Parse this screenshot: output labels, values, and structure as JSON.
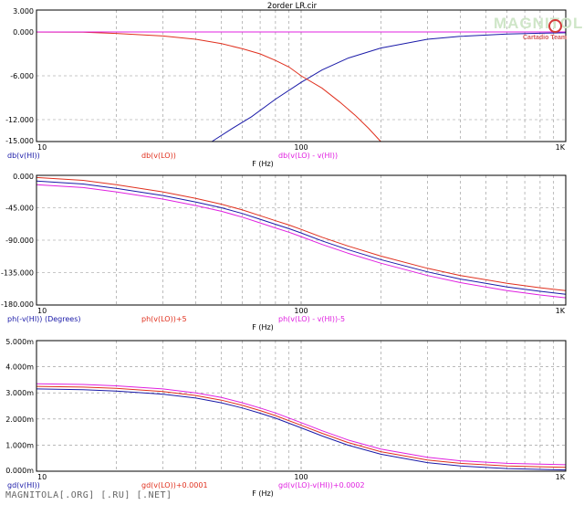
{
  "title": "2order LR.cir",
  "footer": "MAGNITOLA[.ORG] [.RU] [.NET]",
  "logo": {
    "main": "MAGNITOLA",
    "sub": "Cartadio Team"
  },
  "colors": {
    "blue": "#1a1aa8",
    "red": "#e0301e",
    "magenta": "#e020e0",
    "grid": "#909090"
  },
  "chart_data": [
    {
      "type": "line",
      "xscale": "log",
      "xlim": [
        10,
        1000
      ],
      "ylim": [
        -15,
        3
      ],
      "yticks": [
        "3.000",
        "0.000",
        "-6.000",
        "-12.000",
        "-15.000"
      ],
      "xticks": [
        "10",
        "100",
        "1K"
      ],
      "xlabel": "F (Hz)",
      "series": [
        {
          "name": "db(v(HI))",
          "color": "blue",
          "points": [
            [
              46,
              -15
            ],
            [
              55,
              -13.2
            ],
            [
              65,
              -11.6
            ],
            [
              80,
              -9.2
            ],
            [
              100,
              -6.9
            ],
            [
              120,
              -5.2
            ],
            [
              150,
              -3.6
            ],
            [
              200,
              -2.2
            ],
            [
              300,
              -1.0
            ],
            [
              400,
              -0.6
            ],
            [
              600,
              -0.28
            ],
            [
              800,
              -0.17
            ],
            [
              1000,
              -0.11
            ]
          ]
        },
        {
          "name": "db(v(LO))",
          "color": "red",
          "points": [
            [
              10,
              -0.01
            ],
            [
              15,
              -0.04
            ],
            [
              20,
              -0.2
            ],
            [
              30,
              -0.55
            ],
            [
              40,
              -1.0
            ],
            [
              50,
              -1.6
            ],
            [
              60,
              -2.3
            ],
            [
              70,
              -3.0
            ],
            [
              80,
              -3.9
            ],
            [
              90,
              -4.8
            ],
            [
              100,
              -6.0
            ],
            [
              120,
              -7.7
            ],
            [
              140,
              -9.6
            ],
            [
              160,
              -11.4
            ],
            [
              180,
              -13.2
            ],
            [
              200,
              -15
            ]
          ]
        },
        {
          "name": "db(v(LO) - v(HI))",
          "color": "magenta",
          "points": [
            [
              10,
              0
            ],
            [
              1000,
              0
            ]
          ]
        }
      ]
    },
    {
      "type": "line",
      "xscale": "log",
      "xlim": [
        10,
        1000
      ],
      "ylim": [
        -180,
        0
      ],
      "yticks": [
        "0.000",
        "-45.000",
        "-90.000",
        "-135.000",
        "-180.000"
      ],
      "xticks": [
        "10",
        "100",
        "1K"
      ],
      "xlabel": "F (Hz)",
      "series": [
        {
          "name": "ph(-v(HI)) (Degrees)",
          "color": "blue",
          "points": [
            [
              10,
              -8
            ],
            [
              15,
              -12
            ],
            [
              20,
              -18
            ],
            [
              30,
              -28
            ],
            [
              40,
              -37
            ],
            [
              50,
              -45
            ],
            [
              60,
              -53
            ],
            [
              70,
              -61
            ],
            [
              80,
              -68
            ],
            [
              90,
              -74
            ],
            [
              100,
              -80
            ],
            [
              120,
              -91
            ],
            [
              150,
              -103
            ],
            [
              200,
              -117
            ],
            [
              300,
              -134
            ],
            [
              400,
              -144
            ],
            [
              600,
              -155
            ],
            [
              800,
              -161
            ],
            [
              1000,
              -165
            ]
          ]
        },
        {
          "name": "ph(v(LO))+5",
          "color": "red",
          "points": [
            [
              10,
              -3
            ],
            [
              15,
              -7
            ],
            [
              20,
              -13
            ],
            [
              30,
              -23
            ],
            [
              40,
              -32
            ],
            [
              50,
              -40
            ],
            [
              60,
              -48
            ],
            [
              70,
              -56
            ],
            [
              80,
              -63
            ],
            [
              90,
              -69
            ],
            [
              100,
              -75
            ],
            [
              120,
              -86
            ],
            [
              150,
              -98
            ],
            [
              200,
              -112
            ],
            [
              300,
              -129
            ],
            [
              400,
              -139
            ],
            [
              600,
              -150
            ],
            [
              800,
              -156
            ],
            [
              1000,
              -160
            ]
          ]
        },
        {
          "name": "ph(v(LO) - v(HI))-5",
          "color": "magenta",
          "points": [
            [
              10,
              -13
            ],
            [
              15,
              -17
            ],
            [
              20,
              -23
            ],
            [
              30,
              -33
            ],
            [
              40,
              -42
            ],
            [
              50,
              -50
            ],
            [
              60,
              -58
            ],
            [
              70,
              -66
            ],
            [
              80,
              -73
            ],
            [
              90,
              -79
            ],
            [
              100,
              -85
            ],
            [
              120,
              -96
            ],
            [
              150,
              -108
            ],
            [
              200,
              -122
            ],
            [
              300,
              -139
            ],
            [
              400,
              -149
            ],
            [
              600,
              -160
            ],
            [
              800,
              -166
            ],
            [
              1000,
              -170
            ]
          ]
        }
      ]
    },
    {
      "type": "line",
      "xscale": "log",
      "xlim": [
        10,
        1000
      ],
      "ylim": [
        0,
        5
      ],
      "yticks": [
        "5.000m",
        "4.000m",
        "3.000m",
        "2.000m",
        "1.000m",
        "0.000m"
      ],
      "xticks": [
        "10",
        "100",
        "1K"
      ],
      "xlabel": "F (Hz)",
      "series": [
        {
          "name": "gd(v(HI))",
          "color": "blue",
          "points": [
            [
              10,
              3.15
            ],
            [
              15,
              3.12
            ],
            [
              20,
              3.07
            ],
            [
              30,
              2.95
            ],
            [
              40,
              2.8
            ],
            [
              50,
              2.62
            ],
            [
              60,
              2.42
            ],
            [
              70,
              2.22
            ],
            [
              80,
              2.03
            ],
            [
              100,
              1.66
            ],
            [
              120,
              1.35
            ],
            [
              150,
              1.0
            ],
            [
              200,
              0.65
            ],
            [
              300,
              0.33
            ],
            [
              400,
              0.2
            ],
            [
              600,
              0.1
            ],
            [
              800,
              0.07
            ],
            [
              1000,
              0.05
            ]
          ]
        },
        {
          "name": "gd(v(LO))+0.0001",
          "color": "red",
          "points": [
            [
              10,
              3.25
            ],
            [
              15,
              3.22
            ],
            [
              20,
              3.17
            ],
            [
              30,
              3.05
            ],
            [
              40,
              2.9
            ],
            [
              50,
              2.72
            ],
            [
              60,
              2.52
            ],
            [
              70,
              2.32
            ],
            [
              80,
              2.13
            ],
            [
              100,
              1.76
            ],
            [
              120,
              1.45
            ],
            [
              150,
              1.1
            ],
            [
              200,
              0.75
            ],
            [
              300,
              0.43
            ],
            [
              400,
              0.3
            ],
            [
              600,
              0.2
            ],
            [
              800,
              0.17
            ],
            [
              1000,
              0.15
            ]
          ]
        },
        {
          "name": "gd(v(LO)-v(HI))+0.0002",
          "color": "magenta",
          "points": [
            [
              10,
              3.35
            ],
            [
              15,
              3.32
            ],
            [
              20,
              3.27
            ],
            [
              30,
              3.15
            ],
            [
              40,
              3.0
            ],
            [
              50,
              2.82
            ],
            [
              60,
              2.62
            ],
            [
              70,
              2.42
            ],
            [
              80,
              2.23
            ],
            [
              100,
              1.86
            ],
            [
              120,
              1.55
            ],
            [
              150,
              1.2
            ],
            [
              200,
              0.85
            ],
            [
              300,
              0.53
            ],
            [
              400,
              0.4
            ],
            [
              600,
              0.3
            ],
            [
              800,
              0.27
            ],
            [
              1000,
              0.25
            ]
          ]
        }
      ]
    }
  ]
}
